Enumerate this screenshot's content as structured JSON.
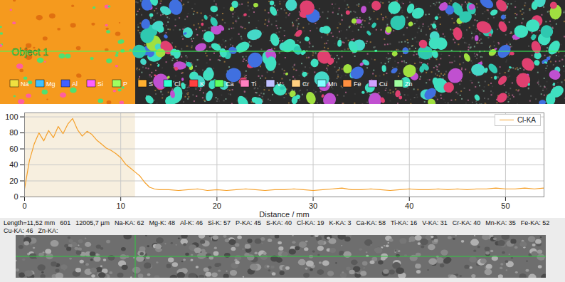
{
  "chart_data": {
    "type": "line",
    "x": [
      0,
      0.5,
      1,
      1.5,
      2,
      2.5,
      3,
      3.5,
      4,
      4.5,
      5,
      5.5,
      6,
      6.5,
      7,
      7.5,
      8,
      8.5,
      9,
      9.5,
      10,
      10.5,
      11,
      11.5,
      12,
      12.5,
      13,
      13.5,
      14,
      15,
      16,
      17,
      18,
      19,
      20,
      21,
      22,
      23,
      24,
      25,
      26,
      27,
      28,
      29,
      30,
      31,
      32,
      33,
      34,
      35,
      36,
      37,
      38,
      39,
      40,
      41,
      42,
      43,
      44,
      45,
      46,
      47,
      48,
      49,
      50,
      51,
      52,
      53,
      54
    ],
    "series": [
      {
        "name": "Cl-KA",
        "color": "#f5a02a",
        "values": [
          10,
          45,
          66,
          80,
          70,
          83,
          74,
          88,
          79,
          91,
          98,
          84,
          76,
          82,
          78,
          71,
          66,
          61,
          58,
          54,
          49,
          41,
          36,
          31,
          26,
          18,
          12,
          10,
          9,
          9,
          8,
          9,
          10,
          8,
          9,
          8,
          9,
          10,
          9,
          8,
          9,
          9,
          10,
          9,
          8,
          9,
          10,
          11,
          9,
          9,
          10,
          9,
          8,
          9,
          10,
          9,
          9,
          10,
          9,
          10,
          9,
          10,
          10,
          11,
          10,
          10,
          11,
          10,
          11
        ]
      }
    ],
    "xlabel": "Distance / mm",
    "xlim": [
      0,
      54
    ],
    "xticks": [
      0,
      10,
      20,
      30,
      40,
      50
    ],
    "ylim": [
      0,
      105
    ],
    "yticks": [
      0,
      20,
      40,
      60,
      80,
      100
    ],
    "selection": [
      0,
      11.52
    ],
    "grid": true,
    "legend": "top-right"
  },
  "map": {
    "label": "Object 1",
    "elements": [
      "Na",
      "Mg",
      "Al",
      "Si",
      "P",
      "S",
      "Cl",
      "K",
      "Ca",
      "Ti",
      "V",
      "Cr",
      "Mn",
      "Fe",
      "Cu",
      "Zn"
    ]
  },
  "status_bar": [
    "Length=11,52 mm",
    "601",
    "12005,7 µm",
    "Na-KA: 62",
    "Mg-K: 48",
    "Al-K: 46",
    "Si-K: 57",
    "P-KA: 45",
    "S-KA: 40",
    "Cl-KA: 19",
    "K-KA: 3",
    "Ca-KA: 58",
    "Ti-KA: 16",
    "V-KA: 31",
    "Cr-KA: 40",
    "Mn-KA: 35",
    "Fe-KA: 52",
    "Cu-KA: 46",
    "Zn-KA:"
  ]
}
